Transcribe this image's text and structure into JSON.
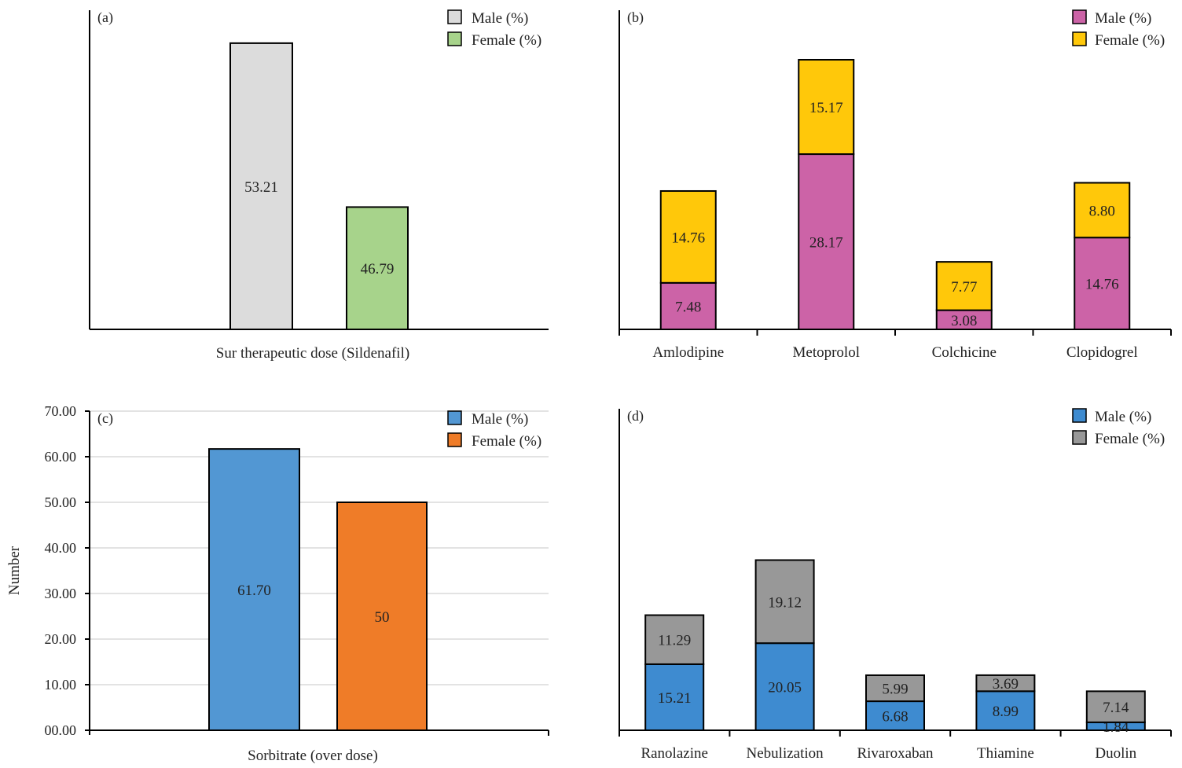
{
  "chart_data": [
    {
      "type": "bar",
      "panel_label": "(a)",
      "xlabel": "Sur therapeutic dose (Sildenafil)",
      "categories": [
        "Male (%)",
        "Female (%)"
      ],
      "values": [
        53.21,
        46.79
      ],
      "value_labels": [
        "53.21",
        "46.79"
      ],
      "colors": [
        "#dcdcdc",
        "#a7d38b"
      ],
      "legend": [
        "Male (%)",
        "Female (%)"
      ],
      "legend_position": "top-right",
      "ylim": [
        42,
        54.5
      ],
      "y_axis_visible": false,
      "grid": false
    },
    {
      "type": "stacked-bar",
      "panel_label": "(b)",
      "categories": [
        "Amlodipine",
        "Metoprolol",
        "Colchicine",
        "Clopidogrel"
      ],
      "series": [
        {
          "name": "Male (%)",
          "color": "#cc63a7",
          "values": [
            7.48,
            28.17,
            3.08,
            14.76
          ],
          "labels": [
            "7.48",
            "28.17",
            "3.08",
            "14.76"
          ]
        },
        {
          "name": "Female (%)",
          "color": "#ffc80a",
          "values": [
            14.76,
            15.17,
            7.77,
            8.8
          ],
          "labels": [
            "14.76",
            "15.17",
            "7.77",
            "8.80"
          ]
        }
      ],
      "legend_position": "top-right",
      "ylim": [
        0,
        51.3
      ],
      "y_axis_visible": false,
      "grid": false
    },
    {
      "type": "bar",
      "panel_label": "(c)",
      "xlabel": "Sorbitrate (over dose)",
      "ylabel": "Number",
      "categories": [
        "Male (%)",
        "Female (%)"
      ],
      "values": [
        61.7,
        50
      ],
      "value_labels": [
        "61.70",
        "50"
      ],
      "colors": [
        "#5297d3",
        "#ef7c28"
      ],
      "legend": [
        "Male (%)",
        "Female (%)"
      ],
      "legend_position": "top-right",
      "ylim": [
        0,
        70
      ],
      "yticks": [
        "00.00",
        "10.00",
        "20.00",
        "30.00",
        "40.00",
        "50.00",
        "60.00",
        "70.00"
      ],
      "grid": true
    },
    {
      "type": "stacked-bar",
      "panel_label": "(d)",
      "categories": [
        "Ranolazine",
        "Nebulization",
        "Rivaroxaban",
        "Thiamine",
        "Duolin"
      ],
      "series": [
        {
          "name": "Male (%)",
          "color": "#3e8bd0",
          "values": [
            15.21,
            20.05,
            6.68,
            8.99,
            1.84
          ],
          "labels": [
            "15.21",
            "20.05",
            "6.68",
            "8.99",
            "1.84"
          ]
        },
        {
          "name": "Female (%)",
          "color": "#989898",
          "values": [
            11.29,
            19.12,
            5.99,
            3.69,
            7.14
          ],
          "labels": [
            "11.29",
            "19.12",
            "5.99",
            "3.69",
            "7.14"
          ]
        }
      ],
      "legend_position": "top-right",
      "ylim": [
        0,
        74
      ],
      "y_axis_visible": false,
      "grid": false
    }
  ]
}
